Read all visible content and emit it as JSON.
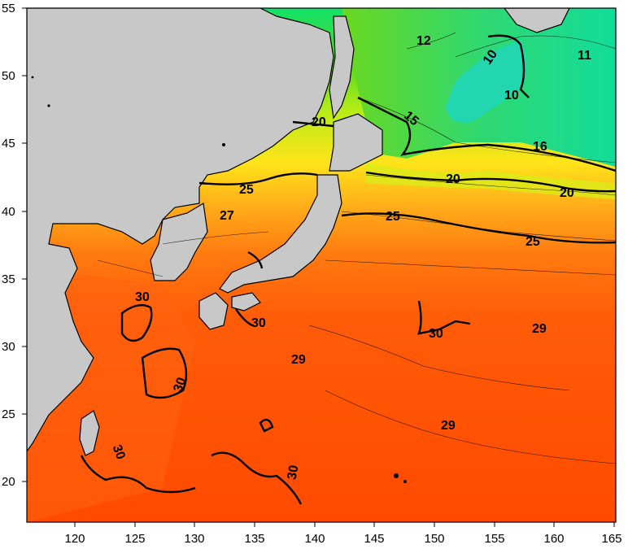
{
  "map": {
    "lon_ticks": [
      "120",
      "125",
      "130",
      "135",
      "140",
      "145",
      "150",
      "155",
      "160",
      "165"
    ],
    "lat_ticks": [
      "55",
      "50",
      "45",
      "40",
      "35",
      "30",
      "25",
      "20"
    ],
    "contour_labels": [
      "12",
      "10",
      "11",
      "10",
      "15",
      "20",
      "16",
      "20",
      "20",
      "25",
      "25",
      "25",
      "27",
      "30",
      "30",
      "30",
      "30",
      "29",
      "29",
      "29",
      "30",
      "30"
    ],
    "colors": {
      "land": "#c8c8c8",
      "sst_warmest": "#ff4a00",
      "sst_30": "#ff5a00",
      "sst_25": "#ff9a1a",
      "sst_20": "#f7f01a",
      "sst_15": "#7ee020",
      "sst_10": "#20d8a0"
    }
  }
}
